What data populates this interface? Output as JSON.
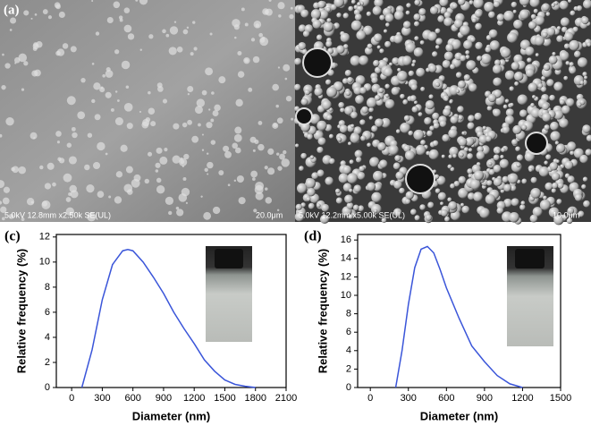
{
  "panel_a": {
    "label": "(a)",
    "left_caption": "5.0kV 12.8mm x2.50k SE(UL)",
    "left_scale": "20.0μm",
    "right_caption": "5.0kV 12.2mm x5.00k SE(UL)",
    "right_scale": "10.0μm"
  },
  "chart_data": [
    {
      "type": "line",
      "panel_label": "(c)",
      "x_label": "Diameter (nm)",
      "y_label": "Relative frequency (%)",
      "series": [
        {
          "color": "#3a55d9",
          "x": [
            100,
            200,
            300,
            400,
            500,
            550,
            600,
            700,
            800,
            900,
            1000,
            1100,
            1200,
            1300,
            1400,
            1500,
            1600,
            1700,
            1800
          ],
          "values": [
            0,
            3,
            7,
            9.8,
            10.9,
            11,
            10.9,
            10,
            8.8,
            7.5,
            6,
            4.7,
            3.5,
            2.2,
            1.3,
            0.6,
            0.25,
            0.1,
            0
          ]
        }
      ],
      "xlim": [
        -150,
        2100
      ],
      "xticks": [
        0,
        300,
        600,
        900,
        1200,
        1500,
        1800,
        2100
      ],
      "ylim": [
        0,
        12.2
      ],
      "yticks": [
        0,
        2,
        4,
        6,
        8,
        10,
        12
      ]
    },
    {
      "type": "line",
      "panel_label": "(d)",
      "x_label": "Diameter (nm)",
      "y_label": "Relative frequency (%)",
      "series": [
        {
          "color": "#3a55d9",
          "x": [
            200,
            250,
            300,
            350,
            400,
            450,
            500,
            550,
            600,
            700,
            800,
            900,
            1000,
            1100,
            1200
          ],
          "values": [
            0,
            4,
            9,
            13,
            15,
            15.3,
            14.6,
            12.8,
            10.8,
            7.5,
            4.5,
            2.8,
            1.3,
            0.4,
            0
          ]
        }
      ],
      "xlim": [
        -100,
        1500
      ],
      "xticks": [
        0,
        300,
        600,
        900,
        1200,
        1500
      ],
      "ylim": [
        0,
        16.6
      ],
      "yticks": [
        0,
        2,
        4,
        6,
        8,
        10,
        12,
        14,
        16
      ]
    }
  ]
}
